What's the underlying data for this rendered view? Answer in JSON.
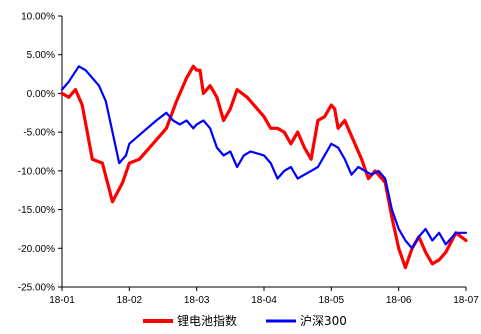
{
  "chart_data": {
    "type": "line",
    "title": "",
    "xlabel": "",
    "ylabel": "",
    "x_tick_labels": [
      "18-01",
      "18-02",
      "18-03",
      "18-04",
      "18-05",
      "18-06",
      "18-07"
    ],
    "y_tick_labels": [
      "10.00%",
      "5.00%",
      "0.00%",
      "-5.00%",
      "-10.00%",
      "-15.00%",
      "-20.00%",
      "-25.00%"
    ],
    "ylim": [
      -25,
      10
    ],
    "xlim": [
      "18-01",
      "18-07"
    ],
    "grid": false,
    "legend_position": "bottom",
    "series": [
      {
        "name": "锂电池指数",
        "color": "#ff0000",
        "points": [
          [
            "18-01",
            0.0
          ],
          [
            "18-01.1",
            -0.5
          ],
          [
            "18-01.2",
            0.5
          ],
          [
            "18-01.3",
            -1.5
          ],
          [
            "18-01.45",
            -8.5
          ],
          [
            "18-01.6",
            -9.0
          ],
          [
            "18-01.75",
            -14.0
          ],
          [
            "18-01.9",
            -11.5
          ],
          [
            "18-02",
            -9.0
          ],
          [
            "18-02.15",
            -8.5
          ],
          [
            "18-02.35",
            -6.5
          ],
          [
            "18-02.55",
            -4.5
          ],
          [
            "18-02.7",
            -1.0
          ],
          [
            "18-02.85",
            2.0
          ],
          [
            "18-02.95",
            3.5
          ],
          [
            "18-03",
            3.0
          ],
          [
            "18-03.05",
            3.0
          ],
          [
            "18-03.1",
            0.0
          ],
          [
            "18-03.2",
            1.0
          ],
          [
            "18-03.3",
            -0.5
          ],
          [
            "18-03.4",
            -3.5
          ],
          [
            "18-03.5",
            -2.0
          ],
          [
            "18-03.6",
            0.5
          ],
          [
            "18-03.75",
            -0.5
          ],
          [
            "18-03.9",
            -2.0
          ],
          [
            "18-04",
            -3.0
          ],
          [
            "18-04.1",
            -4.5
          ],
          [
            "18-04.2",
            -4.5
          ],
          [
            "18-04.3",
            -5.0
          ],
          [
            "18-04.4",
            -6.5
          ],
          [
            "18-04.5",
            -5.0
          ],
          [
            "18-04.6",
            -7.0
          ],
          [
            "18-04.7",
            -8.5
          ],
          [
            "18-04.8",
            -3.5
          ],
          [
            "18-04.9",
            -3.0
          ],
          [
            "18-05",
            -1.5
          ],
          [
            "18-05.05",
            -2.0
          ],
          [
            "18-05.1",
            -4.5
          ],
          [
            "18-05.2",
            -3.5
          ],
          [
            "18-05.3",
            -5.5
          ],
          [
            "18-05.45",
            -8.5
          ],
          [
            "18-05.55",
            -11.0
          ],
          [
            "18-05.65",
            -10.0
          ],
          [
            "18-05.8",
            -11.5
          ],
          [
            "18-05.9",
            -16.0
          ],
          [
            "18-06",
            -20.0
          ],
          [
            "18-06.1",
            -22.5
          ],
          [
            "18-06.2",
            -20.0
          ],
          [
            "18-06.3",
            -18.5
          ],
          [
            "18-06.4",
            -20.5
          ],
          [
            "18-06.5",
            -22.0
          ],
          [
            "18-06.6",
            -21.5
          ],
          [
            "18-06.7",
            -20.5
          ],
          [
            "18-06.85",
            -18.0
          ],
          [
            "18-07",
            -19.0
          ]
        ]
      },
      {
        "name": "沪深300",
        "color": "#0000ff",
        "points": [
          [
            "18-01",
            0.5
          ],
          [
            "18-01.1",
            1.5
          ],
          [
            "18-01.25",
            3.5
          ],
          [
            "18-01.35",
            3.0
          ],
          [
            "18-01.45",
            2.0
          ],
          [
            "18-01.55",
            1.0
          ],
          [
            "18-01.65",
            -1.0
          ],
          [
            "18-01.75",
            -5.0
          ],
          [
            "18-01.85",
            -9.0
          ],
          [
            "18-01.95",
            -8.0
          ],
          [
            "18-02",
            -6.5
          ],
          [
            "18-02.2",
            -5.0
          ],
          [
            "18-02.4",
            -3.5
          ],
          [
            "18-02.55",
            -2.5
          ],
          [
            "18-02.65",
            -3.5
          ],
          [
            "18-02.75",
            -4.0
          ],
          [
            "18-02.85",
            -3.5
          ],
          [
            "18-02.95",
            -4.5
          ],
          [
            "18-03",
            -4.0
          ],
          [
            "18-03.1",
            -3.5
          ],
          [
            "18-03.2",
            -4.5
          ],
          [
            "18-03.3",
            -7.0
          ],
          [
            "18-03.4",
            -8.0
          ],
          [
            "18-03.5",
            -7.5
          ],
          [
            "18-03.6",
            -9.5
          ],
          [
            "18-03.7",
            -8.0
          ],
          [
            "18-03.8",
            -7.5
          ],
          [
            "18-04",
            -8.0
          ],
          [
            "18-04.1",
            -9.0
          ],
          [
            "18-04.2",
            -11.0
          ],
          [
            "18-04.3",
            -10.0
          ],
          [
            "18-04.4",
            -9.5
          ],
          [
            "18-04.5",
            -11.0
          ],
          [
            "18-04.6",
            -10.5
          ],
          [
            "18-04.7",
            -10.0
          ],
          [
            "18-04.8",
            -9.5
          ],
          [
            "18-04.9",
            -8.0
          ],
          [
            "18-05",
            -6.5
          ],
          [
            "18-05.1",
            -7.0
          ],
          [
            "18-05.2",
            -8.5
          ],
          [
            "18-05.3",
            -10.5
          ],
          [
            "18-05.4",
            -9.5
          ],
          [
            "18-05.5",
            -10.0
          ],
          [
            "18-05.6",
            -10.5
          ],
          [
            "18-05.7",
            -10.0
          ],
          [
            "18-05.8",
            -11.0
          ],
          [
            "18-05.9",
            -15.0
          ],
          [
            "18-06",
            -17.5
          ],
          [
            "18-06.1",
            -19.0
          ],
          [
            "18-06.2",
            -20.0
          ],
          [
            "18-06.3",
            -18.5
          ],
          [
            "18-06.4",
            -17.5
          ],
          [
            "18-06.5",
            -19.0
          ],
          [
            "18-06.6",
            -18.0
          ],
          [
            "18-06.7",
            -19.5
          ],
          [
            "18-06.85",
            -18.0
          ],
          [
            "18-07",
            -18.0
          ]
        ]
      }
    ]
  }
}
